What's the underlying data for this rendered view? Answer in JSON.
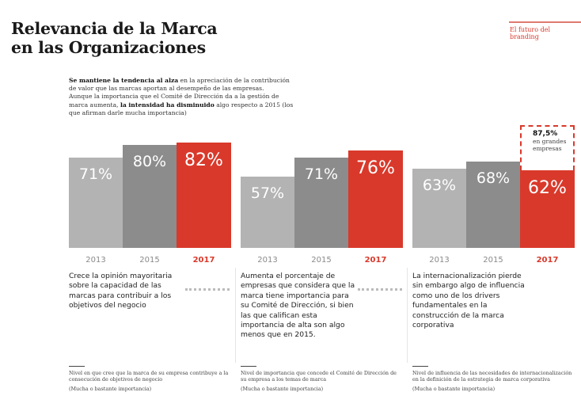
{
  "header": {
    "title_line1": "Relevancia de la Marca",
    "title_line2": "en las Organizaciones",
    "section": "El futuro del branding"
  },
  "intro": {
    "bold1": "Se mantiene la tendencia al alza",
    "text1": " en la apreciación de la contribución de valor que las marcas aportan al desempeño de las empresas.",
    "text2": "Aunque la importancia que el Comité de Dirección da a la gestión de marca aumenta, ",
    "bold2": "la intensidad ha disminuido",
    "text3": " algo respecto a 2015 (los que afirman darle mucha importancia)"
  },
  "colors": {
    "y2013": "#b3b3b3",
    "y2015": "#8c8c8c",
    "y2017": "#d9392b"
  },
  "chart_data": [
    {
      "type": "bar",
      "categories": [
        "2013",
        "2015",
        "2017"
      ],
      "values": [
        71,
        80,
        82
      ],
      "labels": [
        "71%",
        "80%",
        "82%"
      ]
    },
    {
      "type": "bar",
      "categories": [
        "2013",
        "2015",
        "2017"
      ],
      "values": [
        57,
        71,
        76
      ],
      "labels": [
        "57%",
        "71%",
        "76%"
      ]
    },
    {
      "type": "bar",
      "categories": [
        "2013",
        "2015",
        "2017"
      ],
      "values": [
        63,
        68,
        62
      ],
      "labels": [
        "63%",
        "68%",
        "62%"
      ],
      "callout": {
        "value": "87,5%",
        "text1": "en grandes",
        "text2": "empresas"
      }
    }
  ],
  "descriptions": [
    "Crece la opinión mayoritaria sobre la capacidad de las marcas para contribuir a los objetivos del negocio",
    "Aumenta el porcentaje de empresas que considera que la marca tiene importancia para su Comité de Dirección, si bien las que califican esta importancia de alta son algo menos que en 2015.",
    "La internacionalización pierde sin embargo algo de influencia como uno de los drivers fundamentales en la construcción de la marca corporativa"
  ],
  "footnotes": [
    {
      "text": "Nivel en que cree que la marca de su empresa contribuye a la consecución de objetivos de negocio",
      "sub": "(Mucha o bastante importancia)"
    },
    {
      "text": "Nivel de importancia que concede el Comité de Dirección de su empresa a los temas de marca",
      "sub": "(Mucha o bastante importancia)"
    },
    {
      "text": "Nivel de influencia de las necesidades de internacionalización en la definición de la estrategia de marca corporativa",
      "sub": "(Mucha o bastante importancia)"
    }
  ]
}
